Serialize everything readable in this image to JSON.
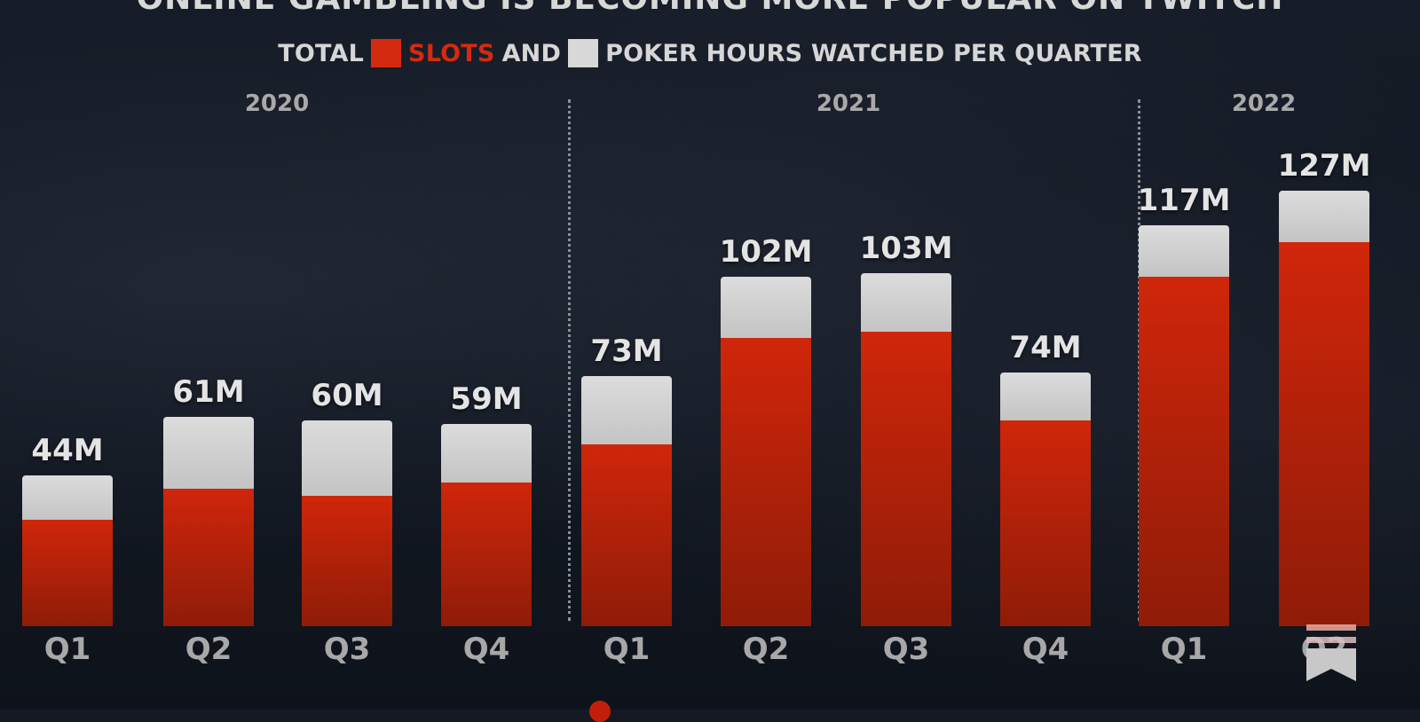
{
  "title": "ONLINE GAMBLING IS BECOMING MORE POPULAR ON TWITCH",
  "legend": {
    "prefix": "TOTAL",
    "slots_label": "SLOTS",
    "joiner": "AND",
    "poker_label": "POKER HOURS WATCHED PER QUARTER",
    "slots_color": "#d42a10",
    "poker_color": "#d8d8d8"
  },
  "years": [
    "2020",
    "2021",
    "2022"
  ],
  "chart_data": {
    "type": "bar",
    "stacked": true,
    "title": "TOTAL SLOTS AND POKER HOURS WATCHED PER QUARTER",
    "xlabel": "",
    "ylabel": "Hours watched",
    "categories": [
      "Q1 2020",
      "Q2 2020",
      "Q3 2020",
      "Q4 2020",
      "Q1 2021",
      "Q2 2021",
      "Q3 2021",
      "Q4 2021",
      "Q1 2022",
      "Q2 2022"
    ],
    "tick_labels": [
      "Q1",
      "Q2",
      "Q3",
      "Q4",
      "Q1",
      "Q2",
      "Q3",
      "Q4",
      "Q1",
      "Q2"
    ],
    "year_groups": [
      {
        "year": "2020",
        "quarters": [
          "Q1",
          "Q2",
          "Q3",
          "Q4"
        ]
      },
      {
        "year": "2021",
        "quarters": [
          "Q1",
          "Q2",
          "Q3",
          "Q4"
        ]
      },
      {
        "year": "2022",
        "quarters": [
          "Q1",
          "Q2"
        ]
      }
    ],
    "series": [
      {
        "name": "Slots",
        "color": "#d42a10",
        "values": [
          31,
          40,
          38,
          42,
          53,
          84,
          86,
          60,
          102,
          112
        ]
      },
      {
        "name": "Poker",
        "color": "#d8d8d8",
        "values": [
          13,
          21,
          22,
          17,
          20,
          18,
          17,
          14,
          15,
          15
        ]
      }
    ],
    "totals": [
      44,
      61,
      60,
      59,
      73,
      102,
      103,
      74,
      117,
      127
    ],
    "total_labels": [
      "44M",
      "61M",
      "60M",
      "59M",
      "73M",
      "102M",
      "103M",
      "74M",
      "117M",
      "127M"
    ],
    "units": "M hours",
    "ylim": [
      0,
      130
    ],
    "grid": false,
    "legend_position": "top"
  }
}
